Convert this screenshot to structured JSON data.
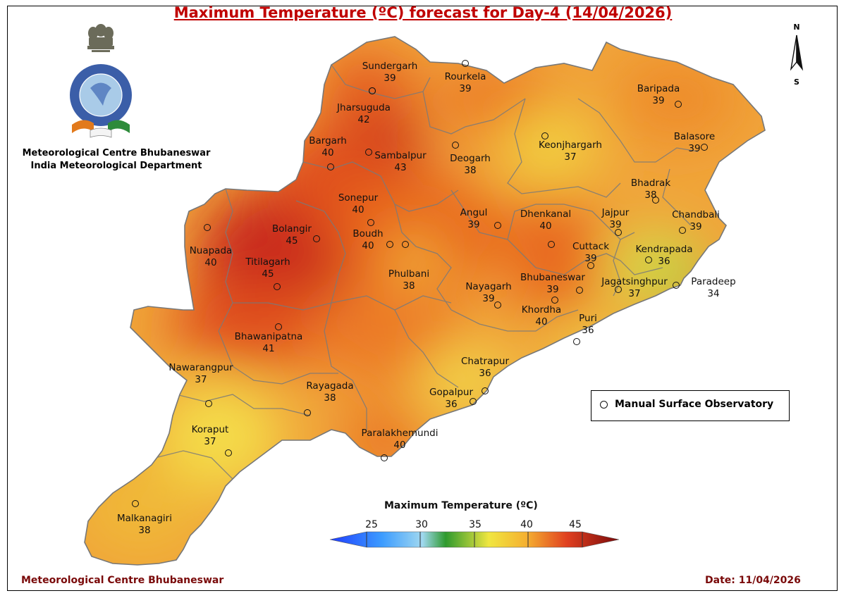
{
  "title": "Maximum Temperature (ºC) forecast for Day-4 (14/04/2026)",
  "organization": {
    "line1": "Meteorological Centre Bhubaneswar",
    "line2": "India Meteorological Department"
  },
  "compass": {
    "north": "N",
    "south": "S"
  },
  "legend": {
    "symbol_label": "Manual Surface Observatory"
  },
  "colorbar": {
    "title": "Maximum Temperature (ºC)",
    "ticks": [
      "25",
      "30",
      "35",
      "40",
      "45"
    ],
    "colors": [
      "#1e3cff",
      "#3c9cff",
      "#a0d8f0",
      "#2e9a2e",
      "#f0e640",
      "#f5b030",
      "#e04020",
      "#7a0a0a"
    ]
  },
  "stations": [
    {
      "name": "Sundergarh",
      "temp": "39"
    },
    {
      "name": "Rourkela",
      "temp": "39"
    },
    {
      "name": "Baripada",
      "temp": "39"
    },
    {
      "name": "Jharsuguda",
      "temp": "42"
    },
    {
      "name": "Keonjhargarh",
      "temp": "37"
    },
    {
      "name": "Bargarh",
      "temp": "40"
    },
    {
      "name": "Sambalpur",
      "temp": "43"
    },
    {
      "name": "Deogarh",
      "temp": "38"
    },
    {
      "name": "Balasore",
      "temp": "39"
    },
    {
      "name": "Bhadrak",
      "temp": "38"
    },
    {
      "name": "Sonepur",
      "temp": "40"
    },
    {
      "name": "Angul",
      "temp": "39"
    },
    {
      "name": "Dhenkanal",
      "temp": "40"
    },
    {
      "name": "Jajpur",
      "temp": "39"
    },
    {
      "name": "Chandbali",
      "temp": "39"
    },
    {
      "name": "Bolangir",
      "temp": "45"
    },
    {
      "name": "Boudh",
      "temp": "40"
    },
    {
      "name": "Nuapada",
      "temp": "40"
    },
    {
      "name": "Cuttack",
      "temp": "39"
    },
    {
      "name": "Kendrapada",
      "temp": "36"
    },
    {
      "name": "Titilagarh",
      "temp": "45"
    },
    {
      "name": "Phulbani",
      "temp": "38"
    },
    {
      "name": "Nayagarh",
      "temp": "39"
    },
    {
      "name": "Bhubaneswar",
      "temp": "39"
    },
    {
      "name": "Jagatsinghpur",
      "temp": "37"
    },
    {
      "name": "Paradeep",
      "temp": "34"
    },
    {
      "name": "Khordha",
      "temp": "40"
    },
    {
      "name": "Puri",
      "temp": "36"
    },
    {
      "name": "Bhawanipatna",
      "temp": "41"
    },
    {
      "name": "Nawarangpur",
      "temp": "37"
    },
    {
      "name": "Chatrapur",
      "temp": "36"
    },
    {
      "name": "Rayagada",
      "temp": "38"
    },
    {
      "name": "Gopalpur",
      "temp": "36"
    },
    {
      "name": "Koraput",
      "temp": "37"
    },
    {
      "name": "Paralakhemundi",
      "temp": "40"
    },
    {
      "name": "Malkanagiri",
      "temp": "38"
    }
  ],
  "footer": {
    "left": "Meteorological Centre Bhubaneswar",
    "right": "Date: 11/04/2026"
  }
}
